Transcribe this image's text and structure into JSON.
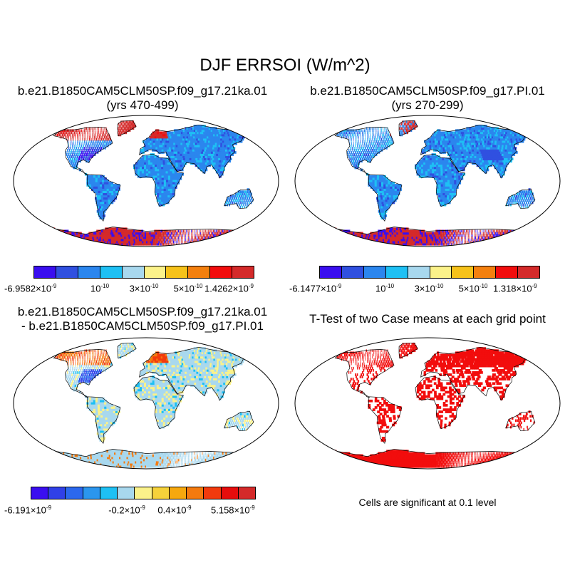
{
  "title": "DJF ERRSOI (W/m^2)",
  "panels": {
    "p1": {
      "title_line1": "b.e21.B1850CAM5CLM50SP.f09_g17.21ka.01",
      "title_line2": "(yrs 470-499)",
      "colorbar": {
        "colors": [
          "#3a0ef0",
          "#3050e0",
          "#2b86ee",
          "#1ec0f4",
          "#a8d8ee",
          "#fbf28a",
          "#f6c21a",
          "#f4800e",
          "#f20d0d",
          "#d42a2a"
        ],
        "labels": [
          {
            "m": "-6.9582",
            "e": "-9"
          },
          {
            "m": "10",
            "e": "-10",
            "pure": true
          },
          {
            "m": "3",
            "e": "-10"
          },
          {
            "m": "5",
            "e": "-10"
          },
          {
            "m": "1.4262",
            "e": "-9"
          }
        ]
      }
    },
    "p2": {
      "title_line1": "b.e21.B1850CAM5CLM50SP.f09_g17.PI.01",
      "title_line2": "(yrs 270-299)",
      "colorbar": {
        "colors": [
          "#3a0ef0",
          "#3050e0",
          "#2b86ee",
          "#1ec0f4",
          "#a8d8ee",
          "#fbf28a",
          "#f6c21a",
          "#f4800e",
          "#f20d0d",
          "#d42a2a"
        ],
        "labels": [
          {
            "m": "-6.1477",
            "e": "-9"
          },
          {
            "m": "10",
            "e": "-10",
            "pure": true
          },
          {
            "m": "3",
            "e": "-10"
          },
          {
            "m": "5",
            "e": "-10"
          },
          {
            "m": "1.318",
            "e": "-9"
          }
        ]
      }
    },
    "p3": {
      "title_line1": "b.e21.B1850CAM5CLM50SP.f09_g17.21ka.01",
      "title_line2": "- b.e21.B1850CAM5CLM50SP.f09_g17.PI.01",
      "colorbar": {
        "colors": [
          "#3a0ef0",
          "#3040e8",
          "#2b68ee",
          "#2b96ee",
          "#1ec0f4",
          "#a8d8ee",
          "#fbf28a",
          "#f6d23a",
          "#f6a80e",
          "#f47a0e",
          "#f23a0d",
          "#e60d0d",
          "#d42a2a"
        ],
        "labels": [
          {
            "m": "-6.191",
            "e": "-9"
          },
          {
            "m": "-0.2",
            "e": "-9"
          },
          {
            "m": "0.4",
            "e": "-9"
          },
          {
            "m": "5.158",
            "e": "-9"
          }
        ]
      }
    },
    "p4": {
      "title": "T-Test of two Case means at each grid point",
      "note": "Cells are significant at 0.1 level"
    }
  }
}
